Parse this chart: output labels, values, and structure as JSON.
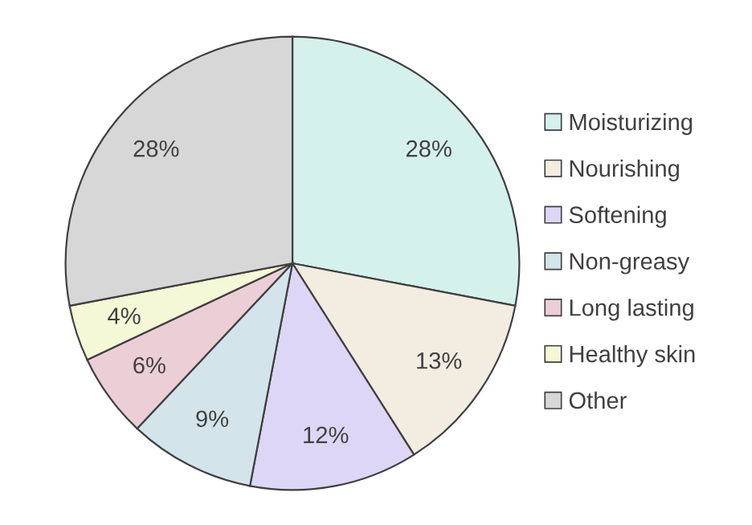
{
  "chart_data": {
    "type": "pie",
    "categories": [
      "Moisturizing",
      "Nourishing",
      "Softening",
      "Non-greasy",
      "Long lasting",
      "Healthy skin",
      "Other"
    ],
    "values": [
      28,
      13,
      12,
      9,
      6,
      4,
      28
    ],
    "value_labels": [
      "28%",
      "13%",
      "12%",
      "9%",
      "6%",
      "4%",
      "28%"
    ],
    "colors": [
      "#d5f1ec",
      "#f2ece1",
      "#ddd6f7",
      "#d3e4ea",
      "#ecced7",
      "#f5f8d6",
      "#d7d7d7"
    ],
    "legend": "right"
  }
}
